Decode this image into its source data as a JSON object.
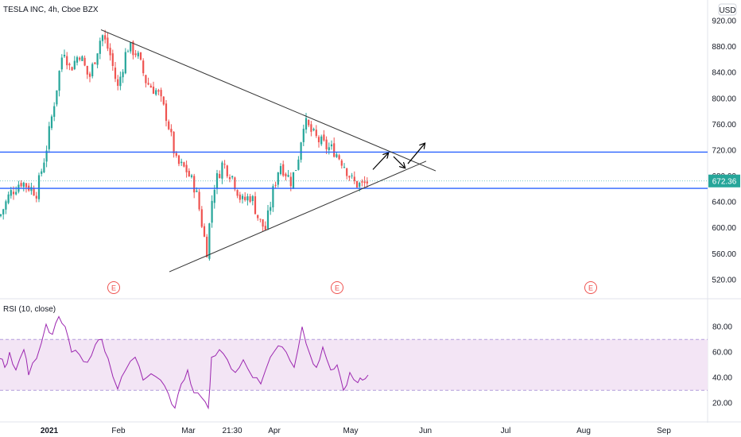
{
  "chart_data": {
    "type": "candlestick",
    "title": "TESLA INC, 4h, Cboe BZX",
    "currency": "USD",
    "colors": {
      "up": "#26a69a",
      "down": "#ef5350",
      "hline": "#2962ff",
      "rsi": "#9c27b0",
      "rsi_band": "#f3e5f5",
      "trend": "#333333",
      "badge_bg": "#26a69a"
    },
    "price_axis": {
      "ticks": [
        "920.00",
        "880.00",
        "840.00",
        "800.00",
        "760.00",
        "720.00",
        "680.00",
        "640.00",
        "600.00",
        "560.00",
        "520.00"
      ],
      "ylim": [
        510,
        925
      ]
    },
    "last_price": "672.36",
    "horizontal_levels": [
      717,
      661
    ],
    "time_axis": [
      "2021",
      "Feb",
      "Mar",
      "21:30",
      "Apr",
      "May",
      "Jun",
      "Jul",
      "Aug",
      "Sep"
    ],
    "earnings_markers": [
      "E",
      "E",
      "E"
    ],
    "key_prices": [
      {
        "t": 0,
        "p": 618
      },
      {
        "t": 12,
        "p": 652
      },
      {
        "t": 26,
        "p": 672
      },
      {
        "t": 46,
        "p": 655
      },
      {
        "t": 58,
        "p": 720
      },
      {
        "t": 80,
        "p": 880
      },
      {
        "t": 88,
        "p": 845
      },
      {
        "t": 100,
        "p": 870
      },
      {
        "t": 112,
        "p": 830
      },
      {
        "t": 128,
        "p": 900
      },
      {
        "t": 138,
        "p": 870
      },
      {
        "t": 148,
        "p": 815
      },
      {
        "t": 160,
        "p": 880
      },
      {
        "t": 172,
        "p": 870
      },
      {
        "t": 184,
        "p": 825
      },
      {
        "t": 198,
        "p": 810
      },
      {
        "t": 210,
        "p": 770
      },
      {
        "t": 222,
        "p": 700
      },
      {
        "t": 234,
        "p": 690
      },
      {
        "t": 246,
        "p": 660
      },
      {
        "t": 252,
        "p": 620
      },
      {
        "t": 260,
        "p": 563
      },
      {
        "t": 268,
        "p": 660
      },
      {
        "t": 280,
        "p": 700
      },
      {
        "t": 292,
        "p": 680
      },
      {
        "t": 304,
        "p": 640
      },
      {
        "t": 316,
        "p": 650
      },
      {
        "t": 326,
        "p": 610
      },
      {
        "t": 334,
        "p": 598
      },
      {
        "t": 344,
        "p": 660
      },
      {
        "t": 352,
        "p": 700
      },
      {
        "t": 366,
        "p": 672
      },
      {
        "t": 374,
        "p": 700
      },
      {
        "t": 382,
        "p": 765
      },
      {
        "t": 396,
        "p": 740
      },
      {
        "t": 410,
        "p": 725
      },
      {
        "t": 420,
        "p": 720
      },
      {
        "t": 432,
        "p": 700
      },
      {
        "t": 444,
        "p": 670
      },
      {
        "t": 456,
        "p": 665
      },
      {
        "t": 463,
        "p": 672
      }
    ],
    "trendlines": [
      {
        "from": {
          "t": 127,
          "p": 906
        },
        "to": {
          "t": 548,
          "p": 688
        }
      },
      {
        "from": {
          "t": 213,
          "p": 532
        },
        "to": {
          "t": 536,
          "p": 703
        }
      }
    ],
    "forecast_path": [
      {
        "t": 469,
        "p": 690
      },
      {
        "t": 488,
        "p": 715
      },
      {
        "t": 495,
        "p": 710
      },
      {
        "t": 509,
        "p": 693
      },
      {
        "t": 513,
        "p": 699
      },
      {
        "t": 534,
        "p": 730
      }
    ],
    "rsi": {
      "label": "RSI (10, close)",
      "ticks": [
        "80.00",
        "60.00",
        "40.00",
        "20.00"
      ],
      "ylim": [
        12,
        92
      ],
      "overbought": 70,
      "oversold": 30,
      "points": [
        {
          "t": 0,
          "v": 55
        },
        {
          "t": 6,
          "v": 48
        },
        {
          "t": 12,
          "v": 60
        },
        {
          "t": 20,
          "v": 46
        },
        {
          "t": 30,
          "v": 62
        },
        {
          "t": 36,
          "v": 42
        },
        {
          "t": 46,
          "v": 55
        },
        {
          "t": 58,
          "v": 82
        },
        {
          "t": 66,
          "v": 74
        },
        {
          "t": 74,
          "v": 88
        },
        {
          "t": 82,
          "v": 80
        },
        {
          "t": 90,
          "v": 60
        },
        {
          "t": 100,
          "v": 58
        },
        {
          "t": 110,
          "v": 52
        },
        {
          "t": 120,
          "v": 66
        },
        {
          "t": 128,
          "v": 70
        },
        {
          "t": 136,
          "v": 55
        },
        {
          "t": 148,
          "v": 31
        },
        {
          "t": 158,
          "v": 46
        },
        {
          "t": 170,
          "v": 56
        },
        {
          "t": 180,
          "v": 38
        },
        {
          "t": 190,
          "v": 43
        },
        {
          "t": 202,
          "v": 38
        },
        {
          "t": 212,
          "v": 27
        },
        {
          "t": 220,
          "v": 16
        },
        {
          "t": 228,
          "v": 35
        },
        {
          "t": 236,
          "v": 46
        },
        {
          "t": 244,
          "v": 28
        },
        {
          "t": 254,
          "v": 24
        },
        {
          "t": 262,
          "v": 16
        },
        {
          "t": 266,
          "v": 56
        },
        {
          "t": 276,
          "v": 62
        },
        {
          "t": 286,
          "v": 54
        },
        {
          "t": 296,
          "v": 44
        },
        {
          "t": 306,
          "v": 54
        },
        {
          "t": 318,
          "v": 40
        },
        {
          "t": 328,
          "v": 35
        },
        {
          "t": 340,
          "v": 56
        },
        {
          "t": 350,
          "v": 65
        },
        {
          "t": 360,
          "v": 60
        },
        {
          "t": 370,
          "v": 48
        },
        {
          "t": 380,
          "v": 80
        },
        {
          "t": 390,
          "v": 58
        },
        {
          "t": 398,
          "v": 48
        },
        {
          "t": 406,
          "v": 64
        },
        {
          "t": 416,
          "v": 46
        },
        {
          "t": 424,
          "v": 50
        },
        {
          "t": 432,
          "v": 30
        },
        {
          "t": 440,
          "v": 44
        },
        {
          "t": 450,
          "v": 36
        },
        {
          "t": 456,
          "v": 38
        },
        {
          "t": 463,
          "v": 42
        }
      ]
    }
  }
}
